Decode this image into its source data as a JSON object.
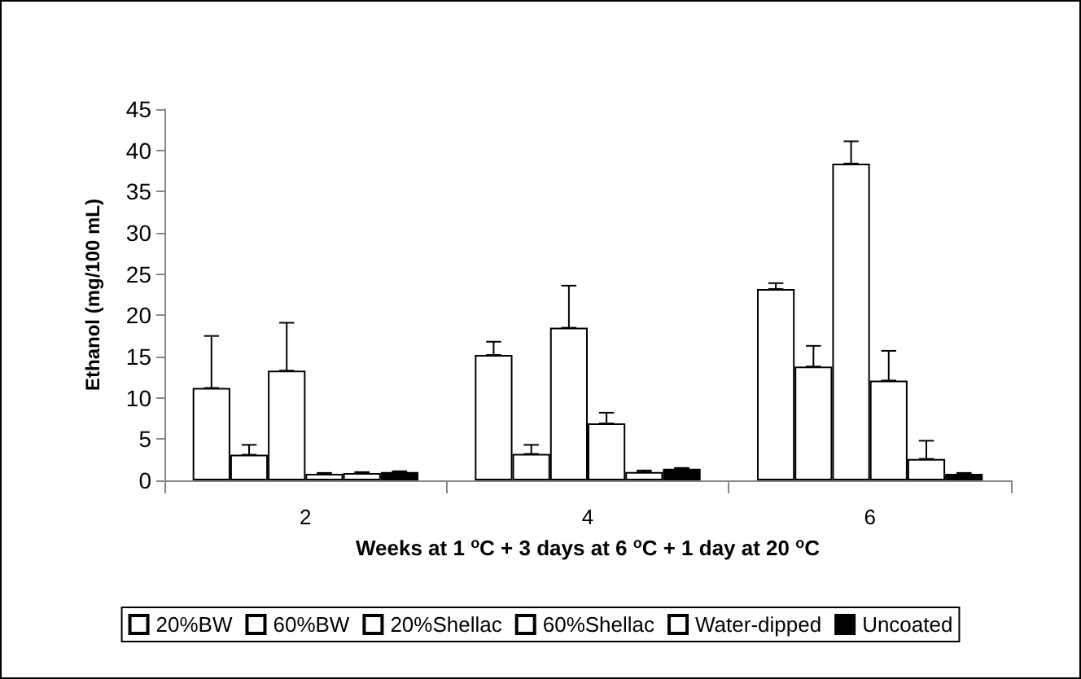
{
  "chart_data": {
    "type": "bar",
    "xlabel": "Weeks at 1 $^{o}$C + 3 days at 6 $^{o}$C + 1 day at 20 $^{o}$C",
    "ylabel": "Ethanol (mg/100 mL)",
    "categories": [
      "2",
      "4",
      "6"
    ],
    "series": [
      {
        "name": "20%BW",
        "color": "#ffffff",
        "values": [
          11.2,
          15.2,
          23.2
        ],
        "errors": [
          [
            11.2,
            17.5
          ],
          [
            15.2,
            16.8
          ],
          [
            23.2,
            23.9
          ]
        ]
      },
      {
        "name": "60%BW",
        "color": "#ffffff",
        "values": [
          3.1,
          3.2,
          13.8
        ],
        "errors": [
          [
            3.1,
            4.3
          ],
          [
            3.2,
            4.3
          ],
          [
            13.8,
            16.3
          ]
        ]
      },
      {
        "name": "20%Shellac",
        "color": "#ffffff",
        "values": [
          13.3,
          18.5,
          38.4
        ],
        "errors": [
          [
            13.3,
            19.1
          ],
          [
            18.5,
            23.6
          ],
          [
            38.4,
            41.1
          ]
        ]
      },
      {
        "name": "60%Shellac",
        "color": "#ffffff",
        "values": [
          0.8,
          6.9,
          12.1
        ],
        "errors": [
          [
            0.8,
            0.9
          ],
          [
            6.9,
            8.2
          ],
          [
            12.1,
            15.7
          ]
        ]
      },
      {
        "name": "Water-dipped",
        "color": "#ffffff",
        "values": [
          0.9,
          1.0,
          2.6
        ],
        "errors": [
          [
            0.9,
            1.0
          ],
          [
            1.0,
            1.2
          ],
          [
            2.6,
            4.8
          ]
        ]
      },
      {
        "name": "Uncoated",
        "color": "#000000",
        "values": [
          1.0,
          1.4,
          0.8
        ],
        "errors": [
          [
            1.0,
            1.1
          ],
          [
            1.4,
            1.5
          ],
          [
            0.8,
            0.9
          ]
        ]
      }
    ],
    "ylim": [
      0,
      45
    ],
    "yticks": [
      0,
      5,
      10,
      15,
      20,
      25,
      30,
      35,
      40,
      45
    ],
    "grid": false,
    "legend": "bottom"
  }
}
